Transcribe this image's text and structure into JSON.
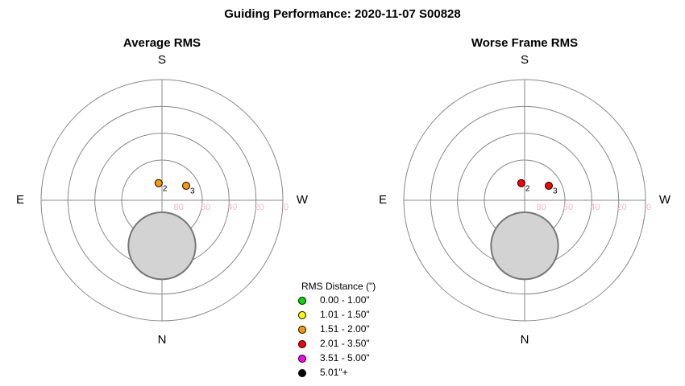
{
  "title": "Guiding Performance: 2020-11-07  S00828",
  "legend": {
    "title": "RMS Distance (\")",
    "items": [
      {
        "label": "0.00 - 1.00\"",
        "color": "#00e000"
      },
      {
        "label": "1.01 - 1.50\"",
        "color": "#ffff00"
      },
      {
        "label": "1.51 - 2.00\"",
        "color": "#ff9900"
      },
      {
        "label": "2.01 - 3.50\"",
        "color": "#ff0000"
      },
      {
        "label": "3.51 - 5.00\"",
        "color": "#ff00ff"
      },
      {
        "label": "5.01\"+",
        "color": "#000000"
      }
    ]
  },
  "chart_data": [
    {
      "type": "polar",
      "title": "Average RMS",
      "directions": {
        "top": "S",
        "bottom": "N",
        "left": "E",
        "right": "W"
      },
      "rlim": [
        90,
        0
      ],
      "rticks": [
        80,
        60,
        40,
        20,
        0
      ],
      "grid_circles": [
        0,
        20,
        40,
        60
      ],
      "exclusion": {
        "az": 0,
        "alt": 56,
        "radius_deg": 25
      },
      "points": {
        "labels": [
          "2",
          "3"
        ],
        "az": [
          169,
          239
        ],
        "alt": [
          77,
          69
        ],
        "color": "#ff9900"
      }
    },
    {
      "type": "polar",
      "title": "Worse Frame RMS",
      "directions": {
        "top": "S",
        "bottom": "N",
        "left": "E",
        "right": "W"
      },
      "rlim": [
        90,
        0
      ],
      "rticks": [
        80,
        60,
        40,
        20,
        0
      ],
      "grid_circles": [
        0,
        20,
        40,
        60
      ],
      "exclusion": {
        "az": 0,
        "alt": 56,
        "radius_deg": 25
      },
      "points": {
        "labels": [
          "2",
          "3"
        ],
        "az": [
          169,
          239
        ],
        "alt": [
          77,
          69
        ],
        "color": "#ff0000"
      }
    }
  ]
}
